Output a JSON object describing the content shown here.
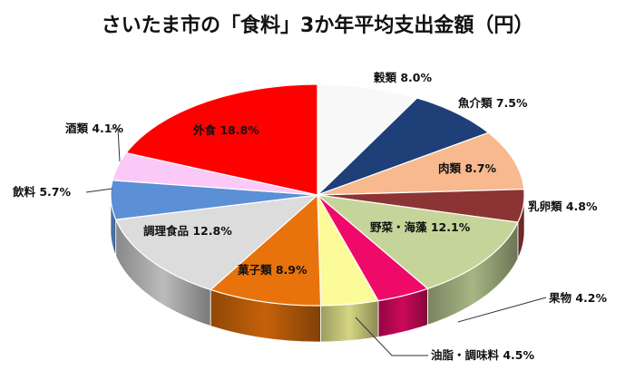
{
  "chart_data": {
    "type": "pie",
    "title": "さいたま市の「食料」3か年平均支出金額（円）",
    "slices": [
      {
        "label": "穀類",
        "value": 8.0,
        "display": "穀類 8.0%",
        "color": "#f8f8f8"
      },
      {
        "label": "魚介類",
        "value": 7.5,
        "display": "魚介類 7.5%",
        "color": "#1f3f78"
      },
      {
        "label": "肉類",
        "value": 8.7,
        "display": "肉類 8.7%",
        "color": "#f7b98d"
      },
      {
        "label": "乳卵類",
        "value": 4.8,
        "display": "乳卵類 4.8%",
        "color": "#8c3434"
      },
      {
        "label": "野菜・海藻",
        "value": 12.1,
        "display": "野菜・海藻 12.1%",
        "color": "#c5d59a"
      },
      {
        "label": "果物",
        "value": 4.2,
        "display": "果物 4.2%",
        "color": "#ef0a6a"
      },
      {
        "label": "油脂・調味料",
        "value": 4.5,
        "display": "油脂・調味料 4.5%",
        "color": "#fbfb9a"
      },
      {
        "label": "菓子類",
        "value": 8.9,
        "display": "菓子類 8.9%",
        "color": "#e8730c"
      },
      {
        "label": "調理食品",
        "value": 12.8,
        "display": "調理食品 12.8%",
        "color": "#dcdcdc"
      },
      {
        "label": "飲料",
        "value": 5.7,
        "display": "飲料 5.7%",
        "color": "#5b8fd6"
      },
      {
        "label": "酒類",
        "value": 4.1,
        "display": "酒類 4.1%",
        "color": "#fbc9f8"
      },
      {
        "label": "外食",
        "value": 18.8,
        "display": "外食 18.8%",
        "color": "#ff0000"
      }
    ]
  }
}
